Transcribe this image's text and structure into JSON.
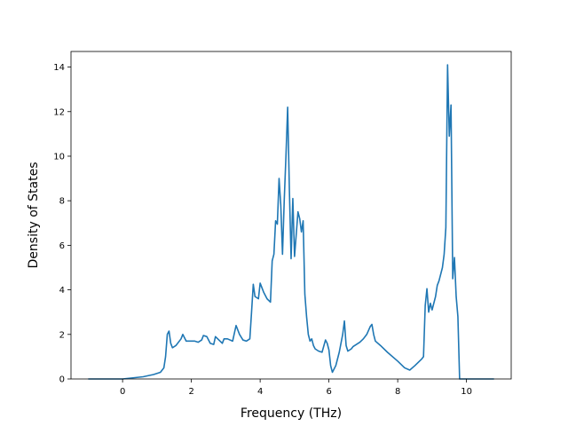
{
  "chart_data": {
    "type": "line",
    "title": "",
    "xlabel": "Frequency (THz)",
    "ylabel": "Density of States",
    "xlim": [
      -1.5,
      11.3
    ],
    "ylim": [
      0,
      14.7
    ],
    "x_ticks": [
      0,
      2,
      4,
      6,
      8,
      10
    ],
    "y_ticks": [
      0,
      2,
      4,
      6,
      8,
      10,
      12,
      14
    ],
    "grid": false,
    "legend": "none",
    "series": [
      {
        "color": "#1f77b4",
        "points": [
          [
            -1.0,
            0.0
          ],
          [
            0.0,
            0.0
          ],
          [
            0.3,
            0.05
          ],
          [
            0.6,
            0.1
          ],
          [
            0.9,
            0.2
          ],
          [
            1.1,
            0.3
          ],
          [
            1.2,
            0.5
          ],
          [
            1.25,
            1.0
          ],
          [
            1.3,
            2.0
          ],
          [
            1.35,
            2.15
          ],
          [
            1.4,
            1.6
          ],
          [
            1.45,
            1.4
          ],
          [
            1.55,
            1.5
          ],
          [
            1.7,
            1.8
          ],
          [
            1.75,
            2.0
          ],
          [
            1.85,
            1.7
          ],
          [
            2.0,
            1.7
          ],
          [
            2.1,
            1.7
          ],
          [
            2.2,
            1.65
          ],
          [
            2.3,
            1.75
          ],
          [
            2.35,
            1.95
          ],
          [
            2.45,
            1.9
          ],
          [
            2.55,
            1.6
          ],
          [
            2.65,
            1.55
          ],
          [
            2.7,
            1.9
          ],
          [
            2.8,
            1.75
          ],
          [
            2.9,
            1.6
          ],
          [
            2.95,
            1.8
          ],
          [
            3.05,
            1.8
          ],
          [
            3.2,
            1.7
          ],
          [
            3.3,
            2.4
          ],
          [
            3.4,
            2.0
          ],
          [
            3.5,
            1.75
          ],
          [
            3.6,
            1.7
          ],
          [
            3.7,
            1.8
          ],
          [
            3.75,
            3.0
          ],
          [
            3.8,
            4.25
          ],
          [
            3.85,
            3.7
          ],
          [
            3.95,
            3.6
          ],
          [
            4.0,
            4.3
          ],
          [
            4.1,
            3.9
          ],
          [
            4.2,
            3.6
          ],
          [
            4.3,
            3.45
          ],
          [
            4.35,
            5.3
          ],
          [
            4.4,
            5.6
          ],
          [
            4.45,
            7.1
          ],
          [
            4.5,
            6.95
          ],
          [
            4.55,
            9.0
          ],
          [
            4.6,
            7.8
          ],
          [
            4.65,
            5.6
          ],
          [
            4.7,
            8.0
          ],
          [
            4.75,
            10.0
          ],
          [
            4.8,
            12.2
          ],
          [
            4.85,
            8.5
          ],
          [
            4.9,
            5.4
          ],
          [
            4.95,
            8.1
          ],
          [
            5.0,
            5.5
          ],
          [
            5.05,
            6.5
          ],
          [
            5.1,
            7.5
          ],
          [
            5.15,
            7.2
          ],
          [
            5.2,
            6.6
          ],
          [
            5.25,
            7.1
          ],
          [
            5.3,
            3.8
          ],
          [
            5.35,
            2.8
          ],
          [
            5.4,
            2.0
          ],
          [
            5.45,
            1.7
          ],
          [
            5.5,
            1.8
          ],
          [
            5.55,
            1.5
          ],
          [
            5.6,
            1.35
          ],
          [
            5.7,
            1.25
          ],
          [
            5.8,
            1.2
          ],
          [
            5.9,
            1.75
          ],
          [
            5.95,
            1.6
          ],
          [
            6.0,
            1.3
          ],
          [
            6.05,
            0.6
          ],
          [
            6.1,
            0.3
          ],
          [
            6.2,
            0.6
          ],
          [
            6.3,
            1.2
          ],
          [
            6.4,
            2.0
          ],
          [
            6.45,
            2.6
          ],
          [
            6.5,
            1.5
          ],
          [
            6.55,
            1.25
          ],
          [
            6.65,
            1.35
          ],
          [
            6.7,
            1.45
          ],
          [
            6.8,
            1.55
          ],
          [
            6.9,
            1.65
          ],
          [
            7.0,
            1.8
          ],
          [
            7.1,
            2.0
          ],
          [
            7.2,
            2.35
          ],
          [
            7.25,
            2.45
          ],
          [
            7.3,
            2.0
          ],
          [
            7.35,
            1.7
          ],
          [
            7.5,
            1.5
          ],
          [
            7.7,
            1.2
          ],
          [
            8.0,
            0.8
          ],
          [
            8.2,
            0.5
          ],
          [
            8.35,
            0.4
          ],
          [
            8.5,
            0.6
          ],
          [
            8.7,
            0.9
          ],
          [
            8.75,
            1.0
          ],
          [
            8.8,
            3.3
          ],
          [
            8.85,
            4.05
          ],
          [
            8.9,
            3.0
          ],
          [
            8.95,
            3.4
          ],
          [
            9.0,
            3.1
          ],
          [
            9.1,
            3.7
          ],
          [
            9.15,
            4.2
          ],
          [
            9.2,
            4.4
          ],
          [
            9.3,
            5.0
          ],
          [
            9.35,
            5.6
          ],
          [
            9.4,
            6.8
          ],
          [
            9.45,
            14.1
          ],
          [
            9.5,
            10.9
          ],
          [
            9.55,
            12.3
          ],
          [
            9.6,
            4.5
          ],
          [
            9.65,
            5.45
          ],
          [
            9.7,
            3.7
          ],
          [
            9.75,
            2.8
          ],
          [
            9.8,
            0.0
          ],
          [
            10.0,
            0.0
          ],
          [
            10.8,
            0.0
          ]
        ]
      }
    ]
  }
}
